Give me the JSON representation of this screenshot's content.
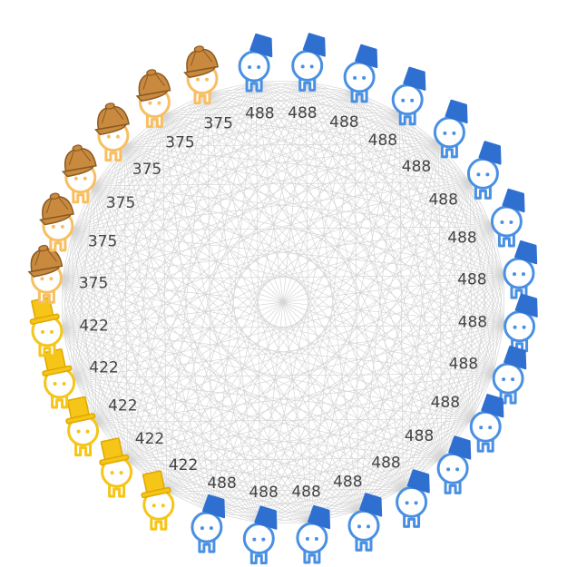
{
  "players": [
    {
      "type": "blue",
      "score": "488"
    },
    {
      "type": "blue",
      "score": "488"
    },
    {
      "type": "blue",
      "score": "488"
    },
    {
      "type": "blue",
      "score": "488"
    },
    {
      "type": "blue",
      "score": "488"
    },
    {
      "type": "blue",
      "score": "488"
    },
    {
      "type": "blue",
      "score": "488"
    },
    {
      "type": "blue",
      "score": "488"
    },
    {
      "type": "blue",
      "score": "488"
    },
    {
      "type": "blue",
      "score": "488"
    },
    {
      "type": "blue",
      "score": "488"
    },
    {
      "type": "blue",
      "score": "488"
    },
    {
      "type": "blue",
      "score": "488"
    },
    {
      "type": "blue",
      "score": "488"
    },
    {
      "type": "blue",
      "score": "488"
    },
    {
      "type": "blue",
      "score": "488"
    },
    {
      "type": "blue",
      "score": "488"
    },
    {
      "type": "yellow",
      "score": "422"
    },
    {
      "type": "yellow",
      "score": "422"
    },
    {
      "type": "yellow",
      "score": "422"
    },
    {
      "type": "yellow",
      "score": "422"
    },
    {
      "type": "yellow",
      "score": "422"
    },
    {
      "type": "orange",
      "score": "375"
    },
    {
      "type": "orange",
      "score": "375"
    },
    {
      "type": "orange",
      "score": "375"
    },
    {
      "type": "orange",
      "score": "375"
    },
    {
      "type": "orange",
      "score": "375"
    },
    {
      "type": "orange",
      "score": "375"
    }
  ],
  "colors": {
    "blue": "#4a90e2",
    "blue_hat": "#2f6fd0",
    "yellow": "#f5c518",
    "yellow_hat": "#f5c518",
    "orange": "#f8bf62",
    "orange_hat": "#c98a40",
    "edge": "#d6d6d6",
    "text": "#444444"
  },
  "icons": {
    "blue": "fez-hat-character-icon",
    "yellow": "top-hat-character-icon",
    "orange": "deerstalker-hat-character-icon"
  }
}
